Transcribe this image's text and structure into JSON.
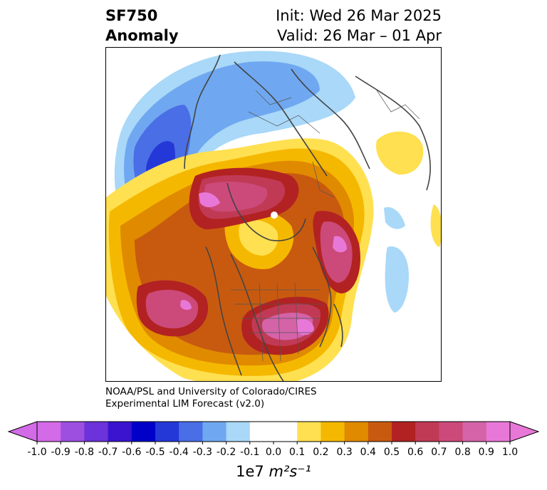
{
  "title": {
    "variable": "SF750",
    "kind": "Anomaly",
    "init": "Init: Wed 26 Mar 2025",
    "valid": "Valid: 26 Mar – 01 Apr"
  },
  "credit": {
    "line1": "NOAA/PSL and University of Colorado/CIRES",
    "line2": "Experimental LIM Forecast (v2.0)"
  },
  "colorbar": {
    "label_base": "1e7",
    "label_unit": "m²s⁻¹",
    "levels": [
      "-1.0",
      "-0.9",
      "-0.8",
      "-0.7",
      "-0.6",
      "-0.5",
      "-0.4",
      "-0.3",
      "-0.2",
      "-0.1",
      "0.0",
      "0.1",
      "0.2",
      "0.3",
      "0.4",
      "0.5",
      "0.6",
      "0.7",
      "0.8",
      "0.9",
      "1.0"
    ],
    "colors": [
      "#d36ae8",
      "#9d4fe0",
      "#6b33d9",
      "#3a14cf",
      "#0000c9",
      "#2438d8",
      "#4a6ee6",
      "#6fa8f0",
      "#a9d8f8",
      "#ffffff",
      "#ffffff",
      "#ffe050",
      "#f5b800",
      "#e08a00",
      "#c85a10",
      "#b22222",
      "#c13a55",
      "#cc4a7a",
      "#d463a8",
      "#e878d8"
    ],
    "extend": "both",
    "under_color": "#d36ae8",
    "over_color": "#e878d8"
  },
  "map": {
    "projection": "north-polar-stereographic",
    "field": "streamfunction anomaly at 750 hPa",
    "coastline_color": "#444444"
  }
}
